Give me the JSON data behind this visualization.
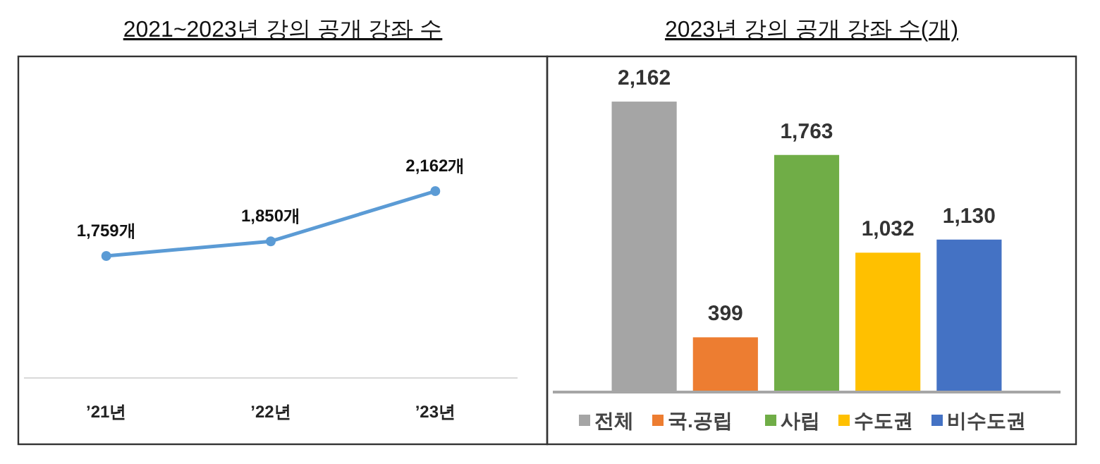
{
  "chart_data": [
    {
      "type": "line",
      "title": "2021~2023년 강의 공개 강좌 수",
      "categories": [
        "’21년",
        "’22년",
        "’23년"
      ],
      "ylim": [
        1000,
        3000
      ],
      "tick_labels": "x",
      "marker": "circle",
      "series": [
        {
          "color": "#5b9bd5",
          "values": [
            1759,
            1850,
            2162
          ],
          "value_labels": [
            "1,759개",
            "1,850개",
            "2,162개"
          ]
        }
      ]
    },
    {
      "type": "bar",
      "title": "2023년 강의 공개 강좌 수(개)",
      "categories": [
        null
      ],
      "ylim": [
        0,
        2500
      ],
      "tick_labels": false,
      "legend": "bottom",
      "series": [
        {
          "name": "전체",
          "color": "#a5a5a5",
          "values": [
            2162
          ],
          "value_labels": [
            "2,162"
          ]
        },
        {
          "name": "국.공립",
          "color": "#ed7d31",
          "values": [
            399
          ],
          "value_labels": [
            "399"
          ]
        },
        {
          "name": "사립",
          "color": "#70ad47",
          "values": [
            1763
          ],
          "value_labels": [
            "1,763"
          ]
        },
        {
          "name": "수도권",
          "color": "#ffc000",
          "values": [
            1032
          ],
          "value_labels": [
            "1,032"
          ]
        },
        {
          "name": "비수도권",
          "color": "#4472c4",
          "values": [
            1130
          ],
          "value_labels": [
            "1,130"
          ]
        }
      ]
    }
  ]
}
